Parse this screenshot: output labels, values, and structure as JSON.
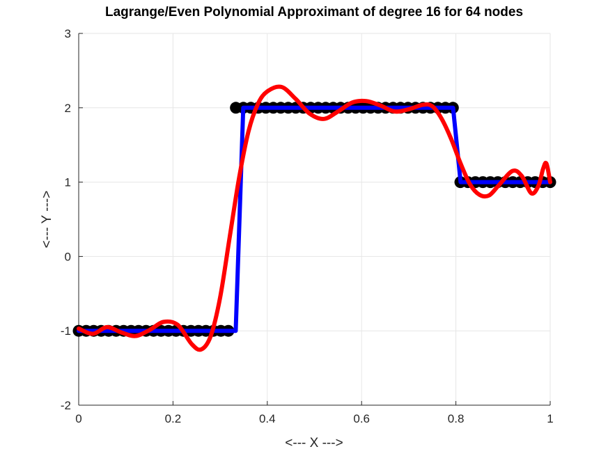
{
  "chart_data": {
    "type": "line",
    "title": "Lagrange/Even Polynomial Approximant of degree 16 for 64 nodes",
    "xlabel": "<--- X --->",
    "ylabel": "<--- Y --->",
    "xlim": [
      0,
      1
    ],
    "ylim": [
      -2,
      3
    ],
    "xticks": [
      0,
      0.2,
      0.4,
      0.6,
      0.8,
      1
    ],
    "xtick_labels": [
      "0",
      "0.2",
      "0.4",
      "0.6",
      "0.8",
      "1"
    ],
    "yticks": [
      -2,
      -1,
      0,
      1,
      2,
      3
    ],
    "ytick_labels": [
      "-2",
      "-1",
      "0",
      "1",
      "2",
      "3"
    ],
    "grid": true,
    "nodes": {
      "style": "black filled circles",
      "color": "#000000",
      "count": 64,
      "segments": [
        {
          "x_start": 0,
          "x_end": 0.333,
          "y": -1
        },
        {
          "x_start": 0.349,
          "x_end": 0.794,
          "y": 2
        },
        {
          "x_start": 0.81,
          "x_end": 1,
          "y": 1
        }
      ]
    },
    "series": [
      {
        "style": "blue step line",
        "color": "#0000ff",
        "x": [
          0,
          0.333,
          0.349,
          0.794,
          0.81,
          1
        ],
        "y": [
          -1,
          -1,
          2,
          2,
          1,
          1
        ]
      },
      {
        "style": "red polynomial curve",
        "color": "#ff0000",
        "x": [
          0,
          0.03,
          0.06,
          0.09,
          0.12,
          0.15,
          0.18,
          0.21,
          0.24,
          0.26,
          0.28,
          0.3,
          0.32,
          0.34,
          0.36,
          0.38,
          0.4,
          0.43,
          0.46,
          0.49,
          0.52,
          0.55,
          0.58,
          0.61,
          0.64,
          0.67,
          0.7,
          0.73,
          0.75,
          0.77,
          0.79,
          0.81,
          0.83,
          0.85,
          0.87,
          0.89,
          0.92,
          0.94,
          0.96,
          0.975,
          0.985,
          0.992,
          1.0
        ],
        "y": [
          -0.97,
          -1.04,
          -0.95,
          -1.02,
          -1.07,
          -0.99,
          -0.88,
          -0.92,
          -1.18,
          -1.25,
          -1.07,
          -0.55,
          0.25,
          1.05,
          1.68,
          2.05,
          2.22,
          2.28,
          2.12,
          1.92,
          1.85,
          1.95,
          2.07,
          2.09,
          2.03,
          1.95,
          1.98,
          2.04,
          2.02,
          1.85,
          1.58,
          1.25,
          0.97,
          0.83,
          0.82,
          0.95,
          1.15,
          1.08,
          0.85,
          0.95,
          1.18,
          1.25,
          1.0
        ]
      }
    ]
  }
}
